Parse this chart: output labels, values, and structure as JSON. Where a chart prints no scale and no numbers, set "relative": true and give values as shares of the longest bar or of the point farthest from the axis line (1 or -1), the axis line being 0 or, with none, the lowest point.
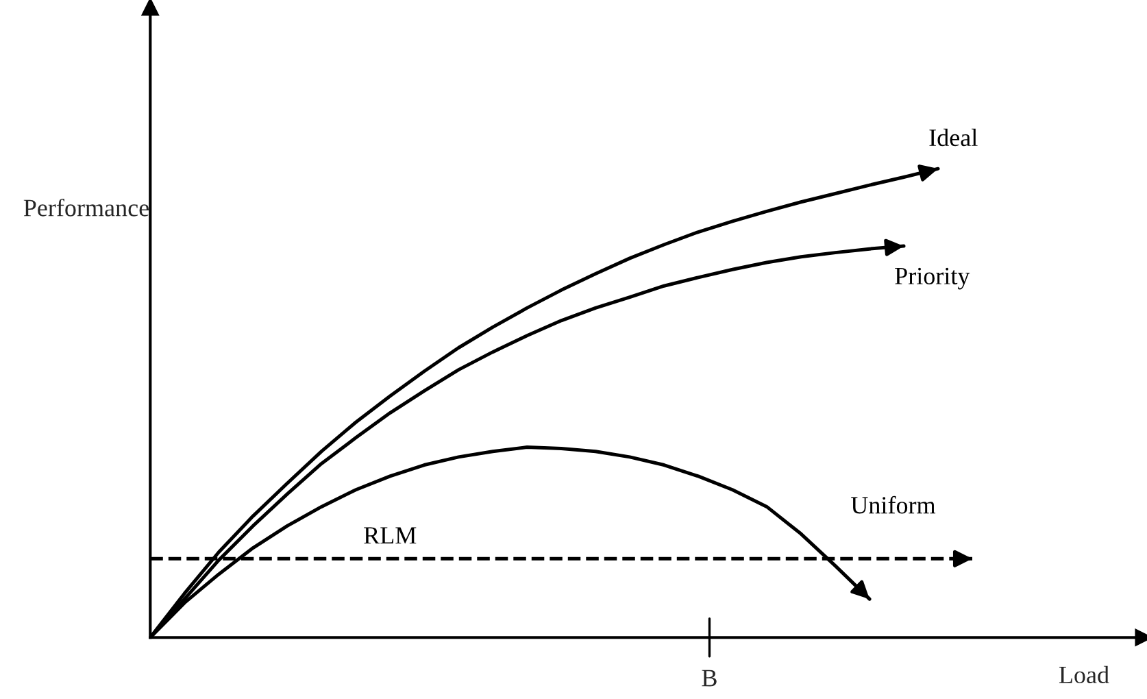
{
  "chart_data": {
    "type": "line",
    "relative": true,
    "xlabel": "Load",
    "ylabel": "Performance",
    "marker": "none",
    "annotations": [
      "B"
    ],
    "categories": [
      null,
      null,
      null,
      null,
      null,
      null,
      null,
      null,
      null,
      null,
      null,
      null,
      null,
      null,
      null,
      null,
      null,
      null,
      null,
      null,
      null,
      null,
      null,
      null,
      null
    ],
    "series": [
      {
        "name": "Ideal",
        "color": "#000000",
        "line_style": "solid",
        "values": [
          0,
          0.094,
          0.182,
          0.259,
          0.329,
          0.397,
          0.459,
          0.515,
          0.568,
          0.618,
          0.662,
          0.703,
          0.741,
          0.776,
          0.809,
          0.838,
          0.865,
          0.888,
          0.909,
          0.929,
          0.947,
          0.965,
          0.982,
          1.0,
          null
        ]
      },
      {
        "name": "Priority",
        "color": "#000000",
        "line_style": "solid",
        "values": [
          0,
          0.082,
          0.165,
          0.238,
          0.306,
          0.371,
          0.426,
          0.479,
          0.526,
          0.571,
          0.609,
          0.644,
          0.676,
          0.703,
          0.726,
          0.75,
          0.768,
          0.785,
          0.8,
          0.812,
          0.821,
          0.829,
          0.835,
          null,
          null
        ]
      },
      {
        "name": "Uniform",
        "color": "#000000",
        "line_style": "solid",
        "values": [
          0,
          0.074,
          0.135,
          0.191,
          0.238,
          0.279,
          0.315,
          0.344,
          0.368,
          0.385,
          0.397,
          0.406,
          0.403,
          0.397,
          0.385,
          0.368,
          0.344,
          0.315,
          0.279,
          0.221,
          0.153,
          0.082,
          null,
          null,
          null
        ]
      },
      {
        "name": "RLM",
        "color": "#000000",
        "line_style": "dashed",
        "values": [
          0.168,
          0.168,
          0.168,
          0.168,
          0.168,
          0.168,
          0.168,
          0.168,
          0.168,
          0.168,
          0.168,
          0.168,
          0.168,
          0.168,
          0.168,
          0.168,
          0.168,
          0.168,
          0.168,
          0.168,
          0.168,
          0.168,
          0.168,
          0.168,
          0.168
        ]
      }
    ]
  }
}
